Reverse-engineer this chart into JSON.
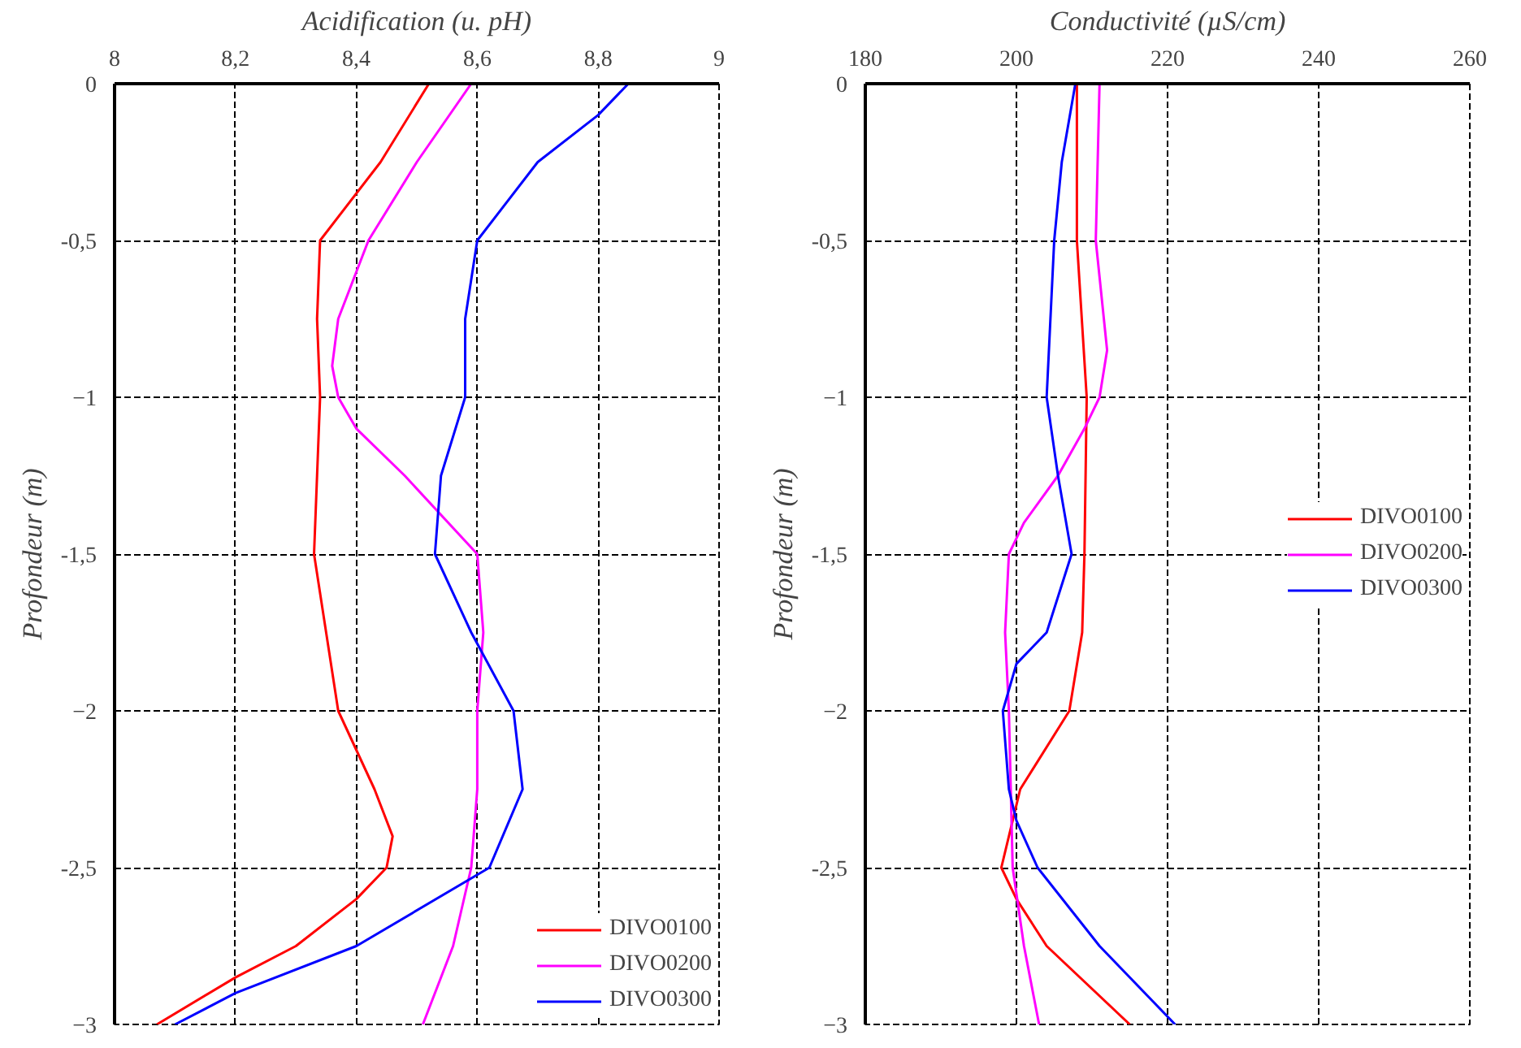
{
  "chart_data": [
    {
      "type": "line",
      "xlabel": "Acidification (u. pH)",
      "ylabel": "Profondeur (m)",
      "xlim": [
        8,
        9
      ],
      "xticks": [
        8,
        {
          "value": 8.2,
          "label": "8,2"
        },
        {
          "value": 8.4,
          "label": "8,4"
        },
        {
          "value": 8.6,
          "label": "8,6"
        },
        {
          "value": 8.8,
          "label": "8,8"
        },
        9
      ],
      "ylim": [
        -3,
        0
      ],
      "yticks": [
        0,
        {
          "value": -0.5,
          "label": "-0,5"
        },
        -1,
        {
          "value": -1.5,
          "label": "-1,5"
        },
        -2,
        {
          "value": -2.5,
          "label": "-2,5"
        },
        -3
      ],
      "grid": true,
      "legend": "bottom right",
      "series": [
        {
          "name": "DIVO0100",
          "color": "#ff0000",
          "x": [
            8.52,
            8.44,
            8.34,
            8.335,
            8.34,
            8.335,
            8.33,
            8.35,
            8.37,
            8.43,
            8.46,
            8.45,
            8.4,
            8.3,
            8.2,
            8.07
          ],
          "values": [
            0,
            -0.25,
            -0.5,
            -0.75,
            -1,
            -1.25,
            -1.5,
            -1.75,
            -2,
            -2.25,
            -2.4,
            -2.5,
            -2.6,
            -2.75,
            -2.85,
            -3
          ]
        },
        {
          "name": "DIVO0200",
          "color": "#ff00ff",
          "x": [
            8.59,
            8.5,
            8.42,
            8.37,
            8.36,
            8.37,
            8.4,
            8.48,
            8.6,
            8.61,
            8.6,
            8.6,
            8.59,
            8.56,
            8.51
          ],
          "values": [
            0,
            -0.25,
            -0.5,
            -0.75,
            -0.9,
            -1,
            -1.1,
            -1.25,
            -1.5,
            -1.75,
            -2,
            -2.25,
            -2.5,
            -2.75,
            -3
          ]
        },
        {
          "name": "DIVO0300",
          "color": "#0000ff",
          "x": [
            8.85,
            8.8,
            8.7,
            8.6,
            8.58,
            8.58,
            8.54,
            8.53,
            8.59,
            8.66,
            8.675,
            8.62,
            8.4,
            8.2,
            8.1
          ],
          "values": [
            0,
            -0.1,
            -0.25,
            -0.5,
            -0.75,
            -1,
            -1.25,
            -1.5,
            -1.75,
            -2,
            -2.25,
            -2.5,
            -2.75,
            -2.9,
            -3
          ]
        }
      ]
    },
    {
      "type": "line",
      "xlabel": "Conductivité (µS/cm)",
      "ylabel": "Profondeur (m)",
      "xlim": [
        180,
        260
      ],
      "xticks": [
        180,
        200,
        220,
        240,
        260
      ],
      "ylim": [
        -3,
        0
      ],
      "yticks": [
        0,
        {
          "value": -0.5,
          "label": "-0,5"
        },
        -1,
        {
          "value": -1.5,
          "label": "-1,5"
        },
        -2,
        {
          "value": -2.5,
          "label": "-2,5"
        },
        -3
      ],
      "grid": true,
      "legend": "right",
      "series": [
        {
          "name": "DIVO0100",
          "color": "#ff0000",
          "x": [
            208,
            208,
            209.3,
            209,
            208.7,
            207,
            200.5,
            200,
            198,
            200,
            204,
            215
          ],
          "values": [
            0,
            -0.5,
            -1,
            -1.5,
            -1.75,
            -2,
            -2.25,
            -2.3,
            -2.5,
            -2.6,
            -2.75,
            -3
          ]
        },
        {
          "name": "DIVO0200",
          "color": "#ff00ff",
          "x": [
            211,
            210.5,
            212,
            211,
            209,
            205.5,
            201,
            199,
            198.5,
            199,
            199.5,
            201,
            203
          ],
          "values": [
            0,
            -0.5,
            -0.85,
            -1,
            -1.1,
            -1.25,
            -1.4,
            -1.5,
            -1.75,
            -2,
            -2.5,
            -2.75,
            -3
          ]
        },
        {
          "name": "DIVO0300",
          "color": "#0000ff",
          "x": [
            207.8,
            206,
            205,
            204,
            205.5,
            207.3,
            204,
            200,
            198.2,
            199,
            200,
            202.8,
            211,
            221
          ],
          "values": [
            0,
            -0.25,
            -0.5,
            -1,
            -1.25,
            -1.5,
            -1.75,
            -1.85,
            -2,
            -2.25,
            -2.35,
            -2.5,
            -2.75,
            -3
          ]
        }
      ]
    }
  ]
}
